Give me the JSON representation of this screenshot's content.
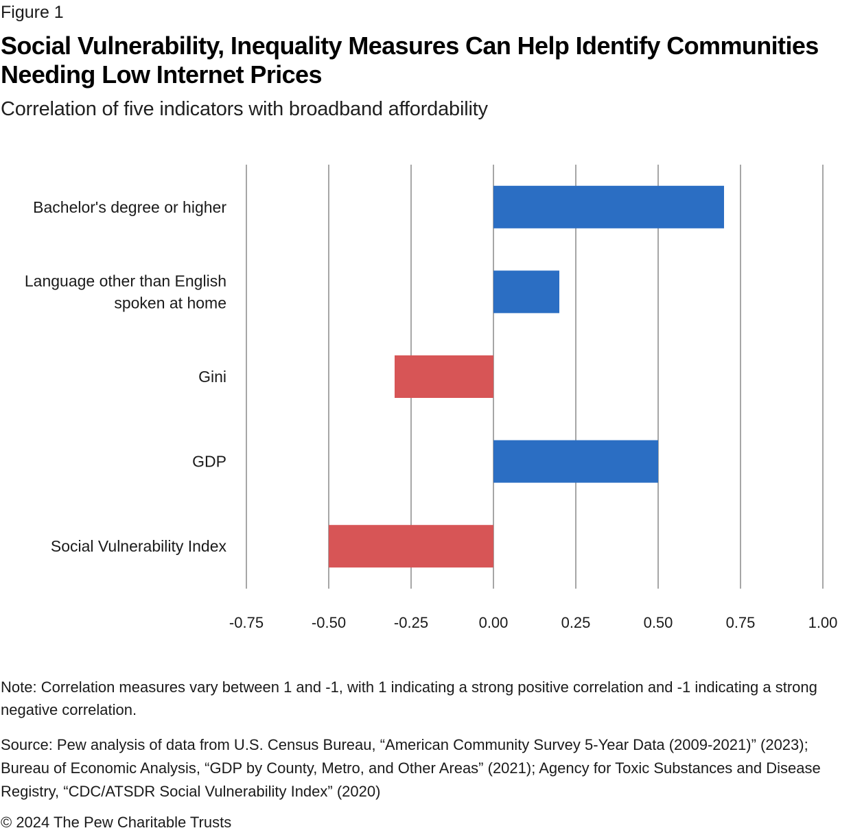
{
  "figure_label": "Figure 1",
  "title": "Social Vulnerability, Inequality Measures Can Help Identify Communities Needing Low Internet Prices",
  "subtitle": "Correlation of five indicators with broadband affordability",
  "note": "Note: Correlation measures vary between 1 and -1, with 1 indicating a strong positive correlation and -1 indicating a strong negative correlation.",
  "source": "Source: Pew analysis of data from U.S. Census Bureau, “American Community Survey 5-Year Data (2009-2021)” (2023); Bureau of Economic Analysis, “GDP by County, Metro, and Other Areas” (2021); Agency for Toxic Substances and Disease Registry, “CDC/ATSDR Social Vulnerability Index” (2020)",
  "copyright": "© 2024 The Pew Charitable Trusts",
  "colors": {
    "positive": "#2b6ec3",
    "negative": "#d75556",
    "grid": "#a6a6a6"
  },
  "chart_data": {
    "type": "bar",
    "orientation": "horizontal",
    "title": "Social Vulnerability, Inequality Measures Can Help Identify Communities Needing Low Internet Prices",
    "subtitle": "Correlation of five indicators with broadband affordability",
    "xlabel": "",
    "ylabel": "",
    "categories": [
      [
        "Bachelor's degree or higher"
      ],
      [
        "Language other than English",
        "spoken at home"
      ],
      [
        "Gini"
      ],
      [
        "GDP"
      ],
      [
        "Social Vulnerability Index"
      ]
    ],
    "category_names": [
      "Bachelor's degree or higher",
      "Language other than English spoken at home",
      "Gini",
      "GDP",
      "Social Vulnerability Index"
    ],
    "values": [
      0.7,
      0.2,
      -0.3,
      0.5,
      -0.5
    ],
    "xlim": [
      -0.75,
      1.0
    ],
    "xticks": [
      -0.75,
      -0.5,
      -0.25,
      0.0,
      0.25,
      0.5,
      0.75,
      1.0
    ],
    "xtick_labels": [
      "-0.75",
      "-0.50",
      "-0.25",
      "0.00",
      "0.25",
      "0.50",
      "0.75",
      "1.00"
    ],
    "grid": "vertical",
    "legend": "none"
  }
}
